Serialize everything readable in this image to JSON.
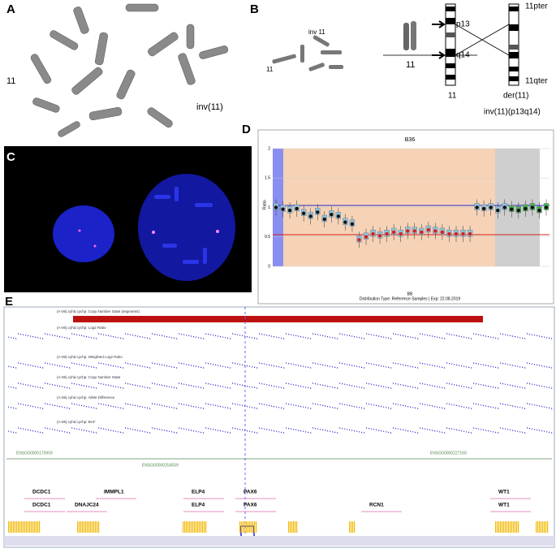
{
  "panels": {
    "a": {
      "label": "A",
      "chromosome_label": "11",
      "inv_label": "inv(11)"
    },
    "b": {
      "label": "B",
      "arrow_label": "11",
      "inv_small": "inv 11",
      "pair_label": "11",
      "p_band": "p13",
      "q_band": "q14",
      "pter": "11pter",
      "qter": "11qter",
      "normal_label": "11",
      "der_label": "der(11)",
      "karyotype": "inv(11)(p13q14)"
    },
    "c": {
      "label": "C"
    },
    "d": {
      "label": "D",
      "chart_data": {
        "type": "dot",
        "title": "B36",
        "x_label": "BB",
        "subtitle": "Distribution Type: Reference Samples | Exp: 22.08.2019",
        "y_label": "Ratio",
        "values": [
          1.0,
          0.97,
          0.95,
          0.98,
          0.9,
          0.85,
          0.92,
          0.8,
          0.88,
          0.85,
          0.75,
          0.72,
          0.45,
          0.5,
          0.55,
          0.52,
          0.55,
          0.58,
          0.55,
          0.6,
          0.6,
          0.58,
          0.62,
          0.6,
          0.58,
          0.55,
          0.55,
          0.55,
          0.55,
          1.0,
          0.98,
          1.0,
          0.95,
          1.0,
          0.97,
          0.95,
          0.98,
          1.0,
          0.95,
          1.0
        ],
        "colors": [
          "#111",
          "#111",
          "#111",
          "#111",
          "#111",
          "#111",
          "#111",
          "#111",
          "#111",
          "#111",
          "#111",
          "#111",
          "#d62020",
          "#d62020",
          "#d62020",
          "#d62020",
          "#d62020",
          "#d62020",
          "#d62020",
          "#d62020",
          "#d62020",
          "#d62020",
          "#d62020",
          "#d62020",
          "#d62020",
          "#d62020",
          "#d62020",
          "#d62020",
          "#d62020",
          "#111",
          "#111",
          "#111",
          "#111",
          "#111",
          "#111",
          "#111",
          "#111",
          "#111",
          "#111",
          "#111"
        ],
        "ylim": [
          0,
          2
        ],
        "yticks": [
          0,
          0.5,
          1,
          1.5,
          2
        ],
        "grid": true
      }
    },
    "e": {
      "label": "E",
      "tracks": [
        "(A-06).cyhd.cychp: Copy Number State (segments)",
        "(A-06).cyhd.cychp: Log2 Ratio",
        "(A-06).cyhd.cychp: Weighted Log2 Ratio",
        "(A-06).cyhd.cychp: Copy Number State",
        "(A-06).cyhd.cychp: Allele Difference",
        "(A-06).cyhd.cychp: BAF"
      ],
      "ensembl": [
        "ENSG00000170959",
        "ENSG00000254559",
        "ENSG00000227160"
      ],
      "genes_row1": [
        "DCDC1",
        "IMMPL1",
        "ELP4",
        "PAX6",
        "WT1"
      ],
      "genes_row2": [
        "DCDC1",
        "DNAJC24",
        "ELP4",
        "PAX6",
        "RCN1",
        "WT1"
      ]
    }
  }
}
